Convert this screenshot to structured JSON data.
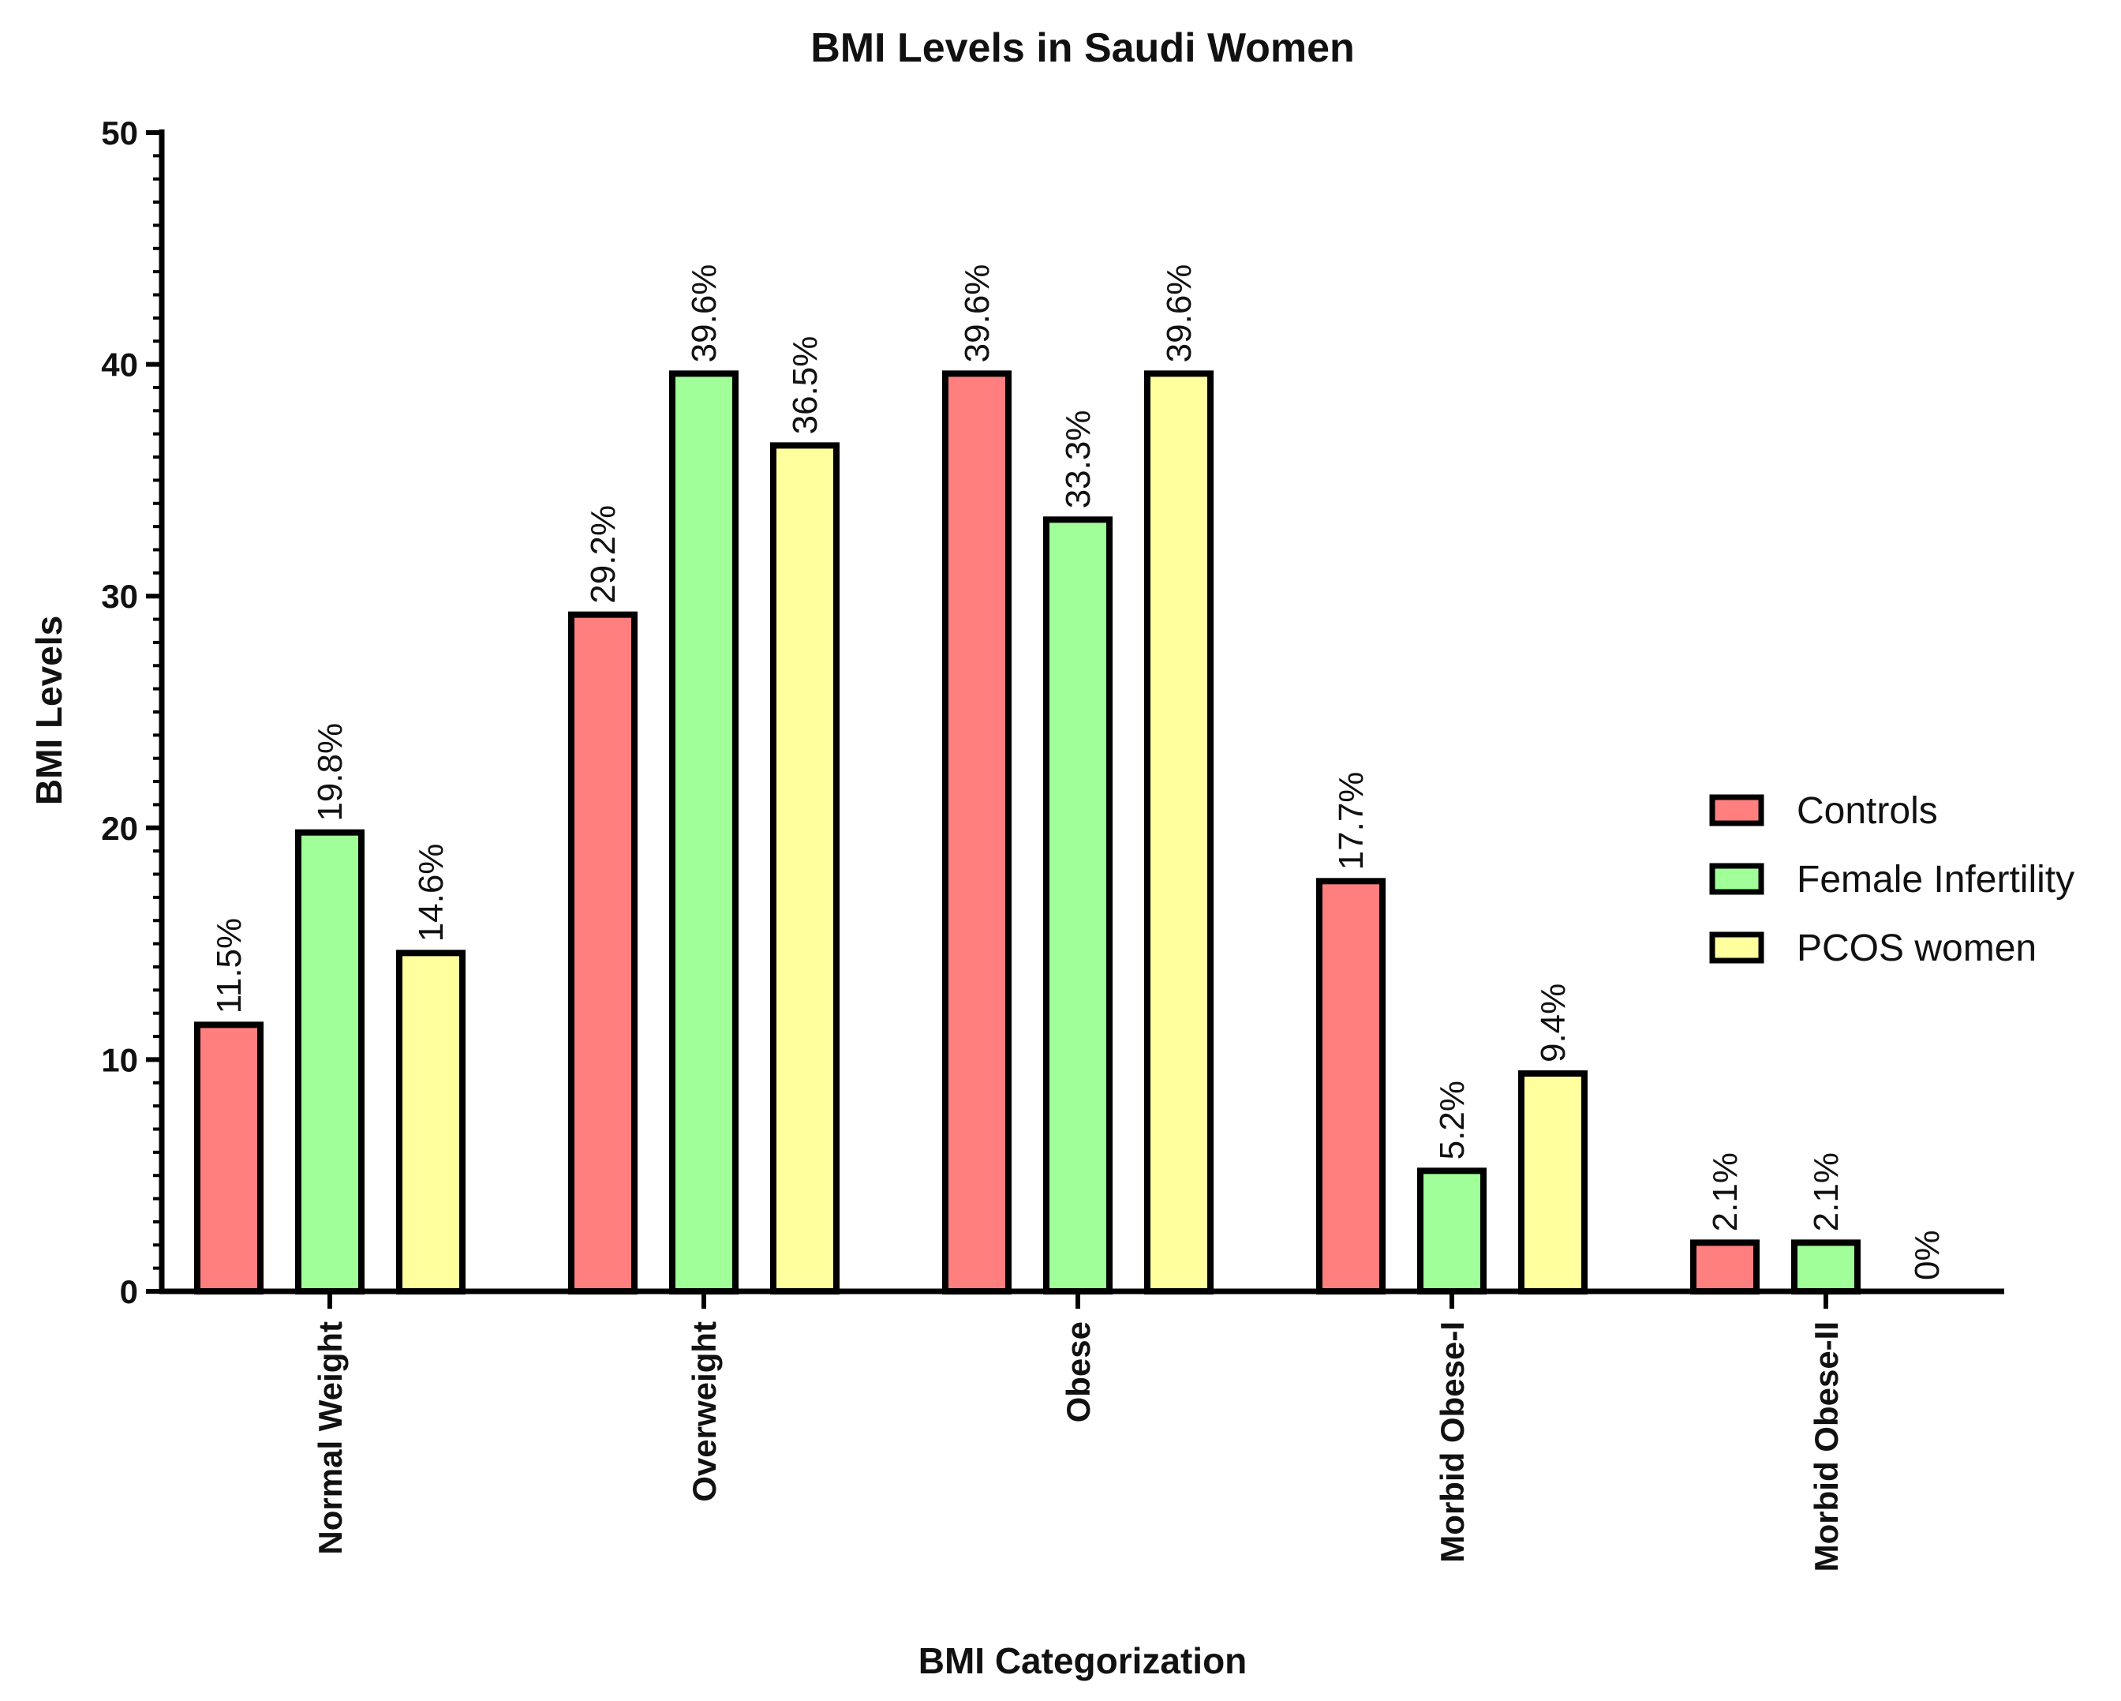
{
  "chart_data": {
    "type": "bar",
    "title": "BMI Levels in  Saudi Women",
    "xlabel": "BMI Categorization",
    "ylabel": "BMI Levels",
    "ylim": [
      0,
      50
    ],
    "yticks": [
      "0",
      "10",
      "20",
      "30",
      "40",
      "50"
    ],
    "categories": [
      "Normal Weight",
      "Overweight",
      "Obese",
      "Morbid Obese-I",
      "Morbid Obese-II"
    ],
    "series": [
      {
        "name": "Controls",
        "color": "#FF7F7F",
        "values": [
          11.5,
          29.2,
          39.6,
          17.7,
          2.1
        ],
        "labels": [
          "11.5%",
          "29.2%",
          "39.6%",
          "17.7%",
          "2.1%"
        ]
      },
      {
        "name": "Female Infertility",
        "color": "#A0FF99",
        "values": [
          19.8,
          39.6,
          33.3,
          5.2,
          2.1
        ],
        "labels": [
          "19.8%",
          "39.6%",
          "33.3%",
          "5.2%",
          "2.1%"
        ]
      },
      {
        "name": "PCOS women",
        "color": "#FFFF9E",
        "values": [
          14.6,
          36.5,
          39.6,
          9.4,
          0
        ],
        "labels": [
          "14.6%",
          "36.5%",
          "39.6%",
          "9.4%",
          "0%"
        ]
      }
    ],
    "grid": false,
    "legend": "right"
  }
}
